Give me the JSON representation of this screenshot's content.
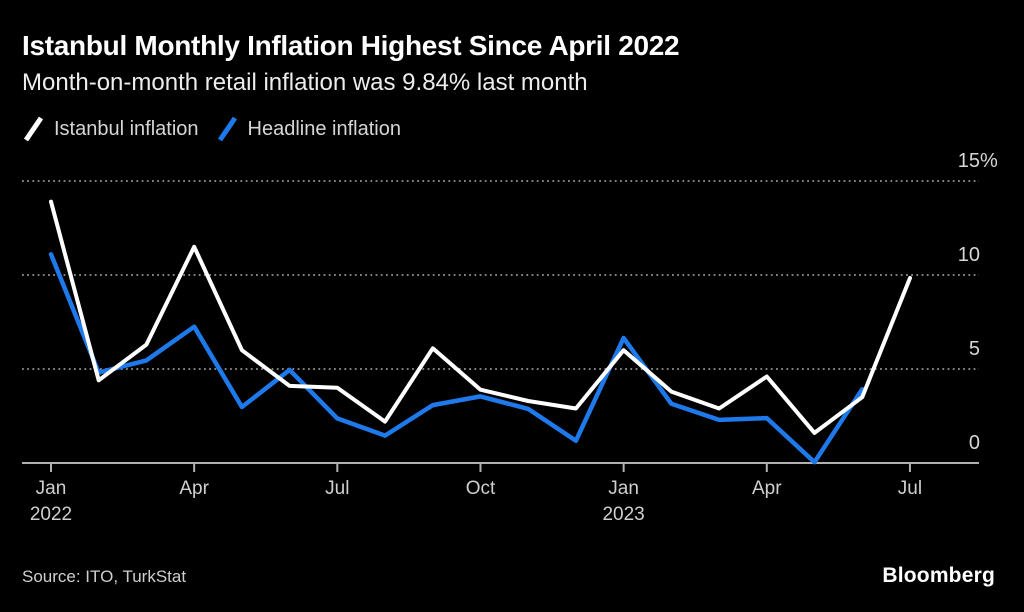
{
  "header": {
    "title": "Istanbul Monthly Inflation Highest Since April 2022",
    "subtitle": "Month-on-month retail inflation was 9.84% last month"
  },
  "legend": [
    {
      "icon": "slash-icon",
      "label": "Istanbul inflation",
      "color": "#ffffff"
    },
    {
      "icon": "slash-icon",
      "label": "Headline inflation",
      "color": "#1e79ea"
    }
  ],
  "footer": {
    "source": "Source: ITO, TurkStat",
    "brand": "Bloomberg"
  },
  "colors": {
    "background": "#000000",
    "istanbul_line": "#ffffff",
    "headline_line": "#1e79ea",
    "gridline": "#818181",
    "axis": "#b0b0b0"
  },
  "chart_data": {
    "type": "line",
    "title": "Istanbul Monthly Inflation Highest Since April 2022",
    "subtitle": "Month-on-month retail inflation was 9.84% last month",
    "x": [
      "Jan 2022",
      "Feb 2022",
      "Mar 2022",
      "Apr 2022",
      "May 2022",
      "Jun 2022",
      "Jul 2022",
      "Aug 2022",
      "Sep 2022",
      "Oct 2022",
      "Nov 2022",
      "Dec 2022",
      "Jan 2023",
      "Feb 2023",
      "Mar 2023",
      "Apr 2023",
      "May 2023",
      "Jun 2023",
      "Jul 2023"
    ],
    "series": [
      {
        "name": "Istanbul inflation",
        "color": "#ffffff",
        "values": [
          13.9,
          4.4,
          6.3,
          11.5,
          6.0,
          4.1,
          4.0,
          2.2,
          6.1,
          3.9,
          3.3,
          2.9,
          6.0,
          3.8,
          2.9,
          4.6,
          1.6,
          3.5,
          9.84
        ]
      },
      {
        "name": "Headline inflation",
        "color": "#1e79ea",
        "values": [
          11.1,
          4.81,
          5.46,
          7.25,
          2.98,
          4.95,
          2.37,
          1.46,
          3.08,
          3.54,
          2.88,
          1.18,
          6.65,
          3.15,
          2.29,
          2.39,
          0.04,
          3.92,
          null
        ]
      }
    ],
    "ylabel": "%",
    "ylim": [
      0,
      15
    ],
    "yticks": [
      {
        "value": 15,
        "label": "15",
        "suffix": "%"
      },
      {
        "value": 10,
        "label": "10"
      },
      {
        "value": 5,
        "label": "5"
      },
      {
        "value": 0,
        "label": "0"
      }
    ],
    "xticks": [
      {
        "index": 0,
        "label": "Jan",
        "year": "2022"
      },
      {
        "index": 3,
        "label": "Apr"
      },
      {
        "index": 6,
        "label": "Jul"
      },
      {
        "index": 9,
        "label": "Oct"
      },
      {
        "index": 12,
        "label": "Jan",
        "year": "2023"
      },
      {
        "index": 15,
        "label": "Apr"
      },
      {
        "index": 18,
        "label": "Jul"
      }
    ],
    "grid": "horizontal-dotted",
    "legend_position": "top-left"
  }
}
